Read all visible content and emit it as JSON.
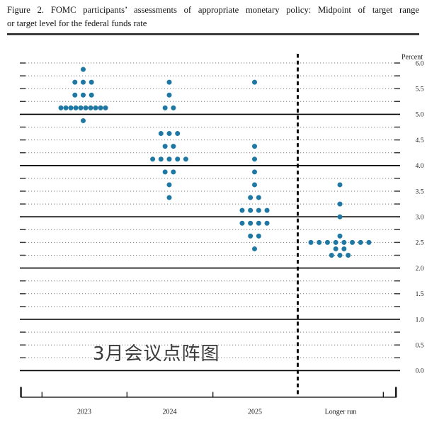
{
  "figure": {
    "title_line1": "Figure 2.  FOMC participants’ assessments of appropriate monetary policy:  Midpoint of target range",
    "title_line2": "or target level for the federal funds rate"
  },
  "watermark": "3月会议点阵图",
  "colors": {
    "dot": "#1f78a4",
    "grid_dotted": "#7a7a7a",
    "grid_solid": "#000000",
    "axis": "#000000",
    "text": "#1a1a1a"
  },
  "chart_data": {
    "type": "scatter",
    "title": "FOMC participants’ assessments of appropriate monetary policy: Midpoint of target range or target level for the federal funds rate",
    "ylabel": "Percent",
    "ylim": [
      0.0,
      6.0
    ],
    "grid_interval": 0.25,
    "label_interval": 0.5,
    "grid": true,
    "solid_gridlines": [
      0.0,
      1.0,
      2.0,
      3.0,
      4.0,
      5.0
    ],
    "y_tick_labels": [
      "6.0",
      "5.5",
      "5.0",
      "4.5",
      "4.0",
      "3.5",
      "3.0",
      "2.5",
      "2.0",
      "1.5",
      "1.0",
      "0.5",
      "0.0"
    ],
    "categories": [
      "2023",
      "2024",
      "2025",
      "Longer run"
    ],
    "series": [
      {
        "name": "2023",
        "dots": [
          {
            "value": 5.875,
            "count": 1
          },
          {
            "value": 5.625,
            "count": 3
          },
          {
            "value": 5.375,
            "count": 3
          },
          {
            "value": 5.125,
            "count": 10
          },
          {
            "value": 4.875,
            "count": 1
          }
        ]
      },
      {
        "name": "2024",
        "dots": [
          {
            "value": 5.625,
            "count": 1
          },
          {
            "value": 5.375,
            "count": 1
          },
          {
            "value": 5.125,
            "count": 2
          },
          {
            "value": 4.625,
            "count": 3
          },
          {
            "value": 4.375,
            "count": 2
          },
          {
            "value": 4.125,
            "count": 5
          },
          {
            "value": 3.875,
            "count": 2
          },
          {
            "value": 3.625,
            "count": 1
          },
          {
            "value": 3.375,
            "count": 1
          }
        ]
      },
      {
        "name": "2025",
        "dots": [
          {
            "value": 5.625,
            "count": 1
          },
          {
            "value": 4.375,
            "count": 1
          },
          {
            "value": 4.125,
            "count": 1
          },
          {
            "value": 3.875,
            "count": 1
          },
          {
            "value": 3.625,
            "count": 1
          },
          {
            "value": 3.375,
            "count": 2
          },
          {
            "value": 3.125,
            "count": 4
          },
          {
            "value": 2.875,
            "count": 4
          },
          {
            "value": 2.625,
            "count": 2
          },
          {
            "value": 2.375,
            "count": 1
          }
        ]
      },
      {
        "name": "Longer run",
        "dots": [
          {
            "value": 3.625,
            "count": 1
          },
          {
            "value": 3.25,
            "count": 1
          },
          {
            "value": 3.0,
            "count": 1
          },
          {
            "value": 2.625,
            "count": 1
          },
          {
            "value": 2.5,
            "count": 8
          },
          {
            "value": 2.375,
            "count": 2
          },
          {
            "value": 2.25,
            "count": 3
          }
        ]
      }
    ]
  }
}
